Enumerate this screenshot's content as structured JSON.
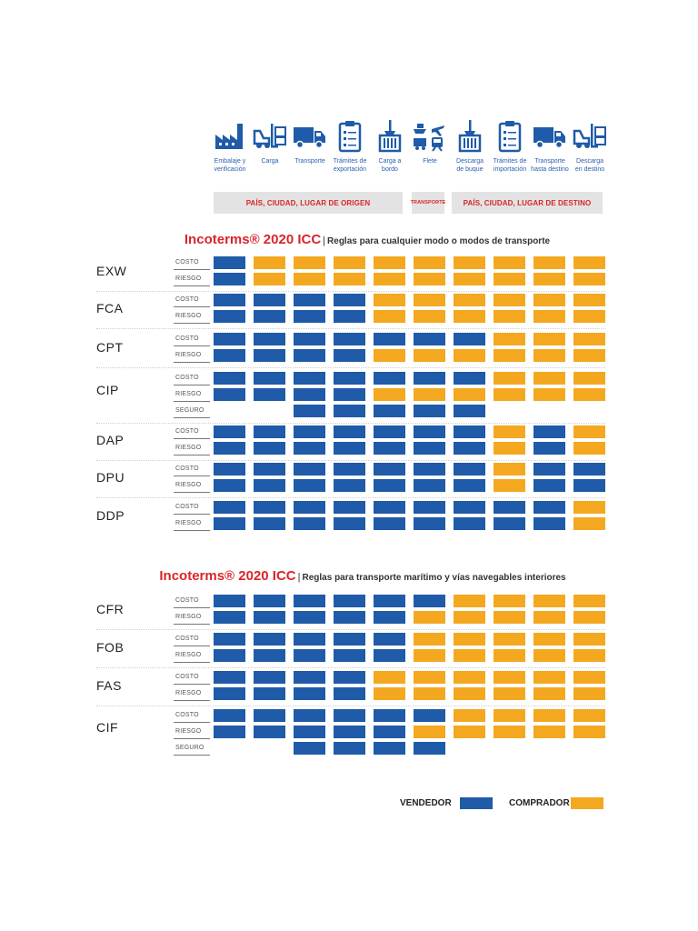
{
  "stages": [
    {
      "label": "Embalaje y\nverificación",
      "icon": "factory-icon"
    },
    {
      "label": "Carga",
      "icon": "forklift-icon"
    },
    {
      "label": "Transporte",
      "icon": "truck-icon"
    },
    {
      "label": "Trámites de\nexportación",
      "icon": "clipboard-icon"
    },
    {
      "label": "Carga a\nbordo",
      "icon": "crane-container-icon"
    },
    {
      "label": "Flete",
      "icon": "multimodal-transport-icon"
    },
    {
      "label": "Descarga\nde buque",
      "icon": "crane-container-icon"
    },
    {
      "label": "Trámites de\nimportación",
      "icon": "clipboard-icon"
    },
    {
      "label": "Transporte\nhasta destino",
      "icon": "truck-icon"
    },
    {
      "label": "Descarga\nen destino",
      "icon": "forklift-icon"
    }
  ],
  "bars": {
    "origin": "PAÍS, CIUDAD, LUGAR DE ORIGEN",
    "transport": "TRANSPORTE",
    "destination": "PAÍS, CIUDAD, LUGAR DE DESTINO"
  },
  "sections": [
    {
      "brand": "Incoterms® 2020 ICC",
      "subtitle": "Reglas para cualquier modo o modos de transporte",
      "terms": [
        {
          "code": "EXW",
          "rows": [
            {
              "label": "COSTO",
              "cells": "SBBBBBBBBB"
            },
            {
              "label": "RIESGO",
              "cells": "SBBBBBBBBB"
            }
          ]
        },
        {
          "code": "FCA",
          "rows": [
            {
              "label": "COSTO",
              "cells": "SSSSBBBBBB"
            },
            {
              "label": "RIESGO",
              "cells": "SSSSBBBBBB"
            }
          ]
        },
        {
          "code": "CPT",
          "rows": [
            {
              "label": "COSTO",
              "cells": "SSSSSSSBBB"
            },
            {
              "label": "RIESGO",
              "cells": "SSSSBBBBBB"
            }
          ]
        },
        {
          "code": "CIP",
          "rows": [
            {
              "label": "COSTO",
              "cells": "SSSSSSSBBB"
            },
            {
              "label": "RIESGO",
              "cells": "SSSSBBBBBB"
            },
            {
              "label": "SEGURO",
              "cells": "..SSSSS..."
            }
          ]
        },
        {
          "code": "DAP",
          "rows": [
            {
              "label": "COSTO",
              "cells": "SSSSSSSBSB"
            },
            {
              "label": "RIESGO",
              "cells": "SSSSSSSBSB"
            }
          ]
        },
        {
          "code": "DPU",
          "rows": [
            {
              "label": "COSTO",
              "cells": "SSSSSSSBSS"
            },
            {
              "label": "RIESGO",
              "cells": "SSSSSSSBSS"
            }
          ]
        },
        {
          "code": "DDP",
          "rows": [
            {
              "label": "COSTO",
              "cells": "SSSSSSSSSB"
            },
            {
              "label": "RIESGO",
              "cells": "SSSSSSSSSB"
            }
          ]
        }
      ]
    },
    {
      "brand": "Incoterms® 2020 ICC",
      "subtitle": "Reglas para transporte marítimo y vías navegables interiores",
      "terms": [
        {
          "code": "CFR",
          "rows": [
            {
              "label": "COSTO",
              "cells": "SSSSSSBBBB"
            },
            {
              "label": "RIESGO",
              "cells": "SSSSSBBBBB"
            }
          ]
        },
        {
          "code": "FOB",
          "rows": [
            {
              "label": "COSTO",
              "cells": "SSSSSBBBBB"
            },
            {
              "label": "RIESGO",
              "cells": "SSSSSBBBBB"
            }
          ]
        },
        {
          "code": "FAS",
          "rows": [
            {
              "label": "COSTO",
              "cells": "SSSSBBBBBB"
            },
            {
              "label": "RIESGO",
              "cells": "SSSSBBBBBB"
            }
          ]
        },
        {
          "code": "CIF",
          "rows": [
            {
              "label": "COSTO",
              "cells": "SSSSSSBBBB"
            },
            {
              "label": "RIESGO",
              "cells": "SSSSSBBBBB"
            },
            {
              "label": "SEGURO",
              "cells": "..SSSS...."
            }
          ]
        }
      ]
    }
  ],
  "legend": {
    "seller": "VENDEDOR",
    "buyer": "COMPRADOR",
    "seller_color": "#1f5ba8",
    "buyer_color": "#f4a81f"
  }
}
